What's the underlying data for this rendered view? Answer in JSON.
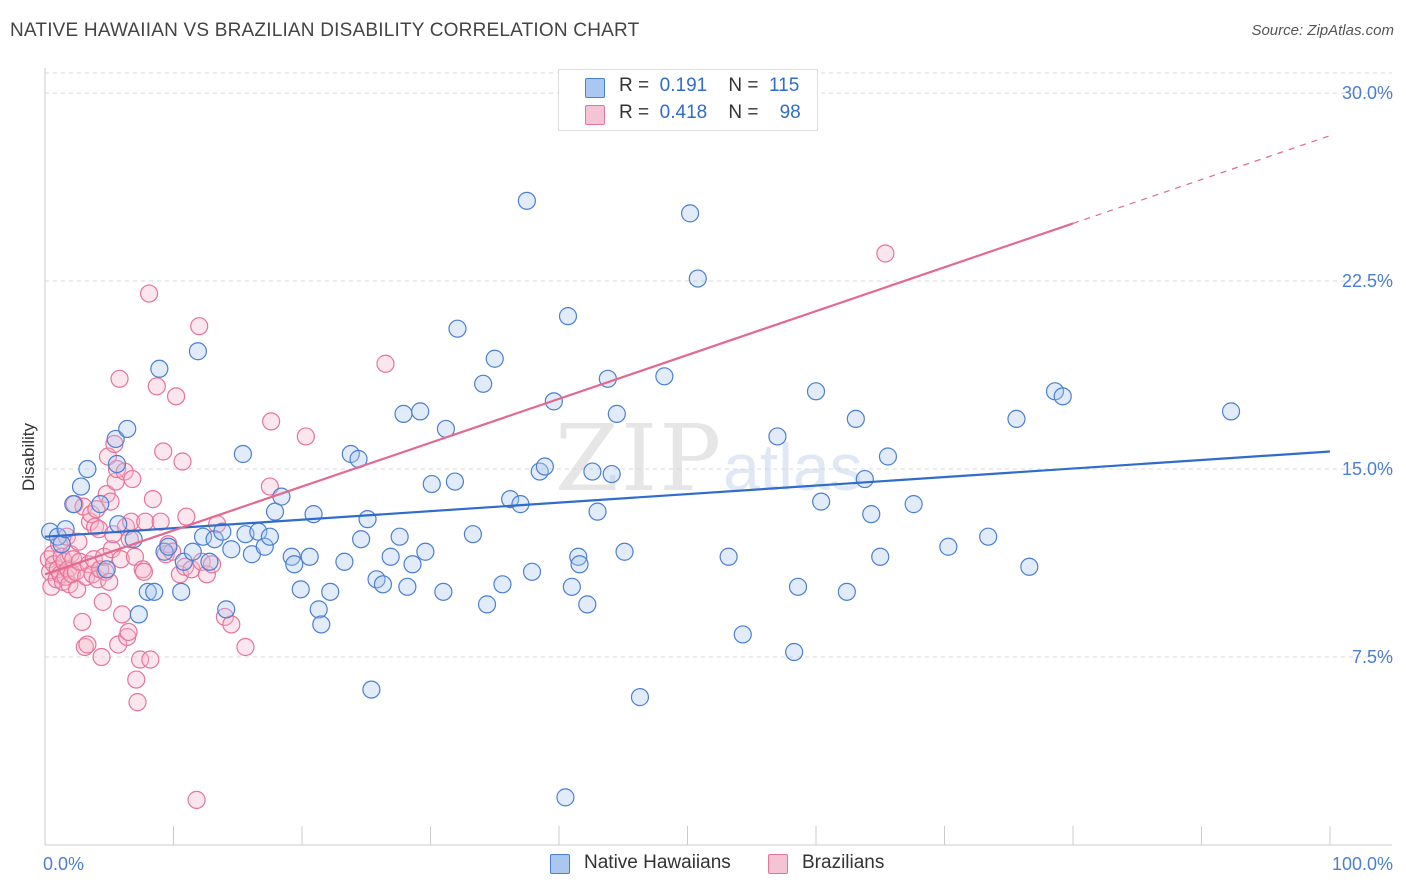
{
  "title": "NATIVE HAWAIIAN VS BRAZILIAN DISABILITY CORRELATION CHART",
  "source": "Source: ZipAtlas.com",
  "watermark": {
    "zip": "ZIP",
    "atlas": "atlas"
  },
  "legend": {
    "rows": [
      {
        "r_label": "R =",
        "r_value": "0.191",
        "n_label": "N =",
        "n_value": "115"
      },
      {
        "r_label": "R =",
        "r_value": "0.418",
        "n_label": "N =",
        "n_value": "98"
      }
    ]
  },
  "bottom_legend": {
    "series_a": "Native Hawaiians",
    "series_b": "Brazilians"
  },
  "axes": {
    "ylabel": "Disability",
    "x_ticks": [
      "0.0%",
      "100.0%"
    ],
    "y_ticks": [
      "7.5%",
      "15.0%",
      "22.5%",
      "30.0%"
    ]
  },
  "colors": {
    "blue_fill": "#aac7ef",
    "blue_stroke": "#4a7fd4",
    "blue_line": "#2f6ccc",
    "pink_fill": "#f5b7cb",
    "pink_stroke": "#e8739a",
    "pink_line": "#e2698f",
    "grid": "#d9d9d9",
    "axis_text": "#4a7fd4"
  },
  "chart_data": {
    "type": "scatter",
    "title": "NATIVE HAWAIIAN VS BRAZILIAN DISABILITY CORRELATION CHART",
    "xlabel": "",
    "ylabel": "Disability",
    "xlim": [
      0,
      100
    ],
    "ylim": [
      0,
      31
    ],
    "y_ticks": [
      7.5,
      15.0,
      22.5,
      30.0
    ],
    "grid": true,
    "legend_position": "top-center",
    "series": [
      {
        "name": "Native Hawaiians",
        "r": 0.191,
        "n": 115,
        "trend": {
          "x": [
            0,
            100
          ],
          "y": [
            12.3,
            15.7
          ]
        },
        "points": [
          [
            0.4,
            12.5
          ],
          [
            1.0,
            12.3
          ],
          [
            1.3,
            12.0
          ],
          [
            1.6,
            12.6
          ],
          [
            2.2,
            13.6
          ],
          [
            2.8,
            14.3
          ],
          [
            3.3,
            15.0
          ],
          [
            4.3,
            13.6
          ],
          [
            4.8,
            11.0
          ],
          [
            5.5,
            16.2
          ],
          [
            5.6,
            15.2
          ],
          [
            5.7,
            12.8
          ],
          [
            6.4,
            16.6
          ],
          [
            6.9,
            12.2
          ],
          [
            7.3,
            9.2
          ],
          [
            8.0,
            10.1
          ],
          [
            8.5,
            10.1
          ],
          [
            8.9,
            19.0
          ],
          [
            9.3,
            11.7
          ],
          [
            9.6,
            11.9
          ],
          [
            10.6,
            10.1
          ],
          [
            10.8,
            11.3
          ],
          [
            11.5,
            11.7
          ],
          [
            11.9,
            19.7
          ],
          [
            12.3,
            12.3
          ],
          [
            12.8,
            11.3
          ],
          [
            13.2,
            12.2
          ],
          [
            13.8,
            12.5
          ],
          [
            14.1,
            9.4
          ],
          [
            14.5,
            11.8
          ],
          [
            15.4,
            15.6
          ],
          [
            15.6,
            12.4
          ],
          [
            16.1,
            11.6
          ],
          [
            16.6,
            12.5
          ],
          [
            17.1,
            11.9
          ],
          [
            17.5,
            12.3
          ],
          [
            17.9,
            13.3
          ],
          [
            18.4,
            13.9
          ],
          [
            19.2,
            11.5
          ],
          [
            19.4,
            11.2
          ],
          [
            19.9,
            10.2
          ],
          [
            20.6,
            11.5
          ],
          [
            20.9,
            13.2
          ],
          [
            21.3,
            9.4
          ],
          [
            21.5,
            8.8
          ],
          [
            22.2,
            10.1
          ],
          [
            23.3,
            11.3
          ],
          [
            23.8,
            15.6
          ],
          [
            24.4,
            15.4
          ],
          [
            24.6,
            12.2
          ],
          [
            25.1,
            13.0
          ],
          [
            25.4,
            6.2
          ],
          [
            25.8,
            10.6
          ],
          [
            26.3,
            10.4
          ],
          [
            26.9,
            11.5
          ],
          [
            27.6,
            12.3
          ],
          [
            27.9,
            17.2
          ],
          [
            28.2,
            10.3
          ],
          [
            28.6,
            11.2
          ],
          [
            29.2,
            17.3
          ],
          [
            29.6,
            11.7
          ],
          [
            30.1,
            14.4
          ],
          [
            31.0,
            10.1
          ],
          [
            31.2,
            16.6
          ],
          [
            31.9,
            14.5
          ],
          [
            32.1,
            20.6
          ],
          [
            33.3,
            12.4
          ],
          [
            34.1,
            18.4
          ],
          [
            34.4,
            9.6
          ],
          [
            35.0,
            19.4
          ],
          [
            35.6,
            10.4
          ],
          [
            36.2,
            13.8
          ],
          [
            37.0,
            13.6
          ],
          [
            37.5,
            25.7
          ],
          [
            37.9,
            10.9
          ],
          [
            38.5,
            14.9
          ],
          [
            38.9,
            15.1
          ],
          [
            39.6,
            17.7
          ],
          [
            40.5,
            1.9
          ],
          [
            40.7,
            21.1
          ],
          [
            41.0,
            10.3
          ],
          [
            41.5,
            11.5
          ],
          [
            41.6,
            11.2
          ],
          [
            42.2,
            9.6
          ],
          [
            42.6,
            14.9
          ],
          [
            43.0,
            13.3
          ],
          [
            43.8,
            18.6
          ],
          [
            44.1,
            14.8
          ],
          [
            44.5,
            17.2
          ],
          [
            45.1,
            11.7
          ],
          [
            46.3,
            5.9
          ],
          [
            48.2,
            18.7
          ],
          [
            50.2,
            25.2
          ],
          [
            50.8,
            22.6
          ],
          [
            53.2,
            11.5
          ],
          [
            54.3,
            8.4
          ],
          [
            57.0,
            16.3
          ],
          [
            58.3,
            7.7
          ],
          [
            58.6,
            10.3
          ],
          [
            60.0,
            18.1
          ],
          [
            60.4,
            13.7
          ],
          [
            62.4,
            10.1
          ],
          [
            63.1,
            17.0
          ],
          [
            63.8,
            14.6
          ],
          [
            64.3,
            13.2
          ],
          [
            65.0,
            11.5
          ],
          [
            65.6,
            15.5
          ],
          [
            67.6,
            13.6
          ],
          [
            70.3,
            11.9
          ],
          [
            73.4,
            12.3
          ],
          [
            75.6,
            17.0
          ],
          [
            76.6,
            11.1
          ],
          [
            78.6,
            18.1
          ],
          [
            79.2,
            17.9
          ],
          [
            92.3,
            17.3
          ]
        ]
      },
      {
        "name": "Brazilians",
        "r": 0.418,
        "n": 98,
        "trend": {
          "x": [
            0,
            80
          ],
          "y": [
            10.8,
            24.8
          ]
        },
        "trend_dashed": {
          "x": [
            80,
            100
          ],
          "y": [
            24.8,
            28.3
          ]
        },
        "points": [
          [
            0.3,
            11.4
          ],
          [
            0.4,
            10.9
          ],
          [
            0.5,
            10.3
          ],
          [
            0.6,
            11.6
          ],
          [
            0.7,
            11.2
          ],
          [
            0.9,
            10.6
          ],
          [
            1.0,
            11.0
          ],
          [
            1.1,
            12.0
          ],
          [
            1.2,
            10.8
          ],
          [
            1.3,
            11.5
          ],
          [
            1.4,
            10.5
          ],
          [
            1.5,
            11.3
          ],
          [
            1.6,
            10.7
          ],
          [
            1.7,
            12.3
          ],
          [
            1.8,
            11.0
          ],
          [
            1.9,
            10.4
          ],
          [
            2.0,
            11.6
          ],
          [
            2.1,
            10.8
          ],
          [
            2.2,
            11.4
          ],
          [
            2.3,
            13.6
          ],
          [
            2.4,
            10.9
          ],
          [
            2.5,
            10.2
          ],
          [
            2.6,
            12.1
          ],
          [
            2.7,
            11.3
          ],
          [
            2.9,
            8.9
          ],
          [
            3.0,
            13.5
          ],
          [
            3.1,
            7.9
          ],
          [
            3.2,
            10.7
          ],
          [
            3.3,
            8.0
          ],
          [
            3.4,
            11.2
          ],
          [
            3.5,
            12.9
          ],
          [
            3.6,
            13.2
          ],
          [
            3.7,
            10.8
          ],
          [
            3.8,
            11.4
          ],
          [
            3.9,
            12.7
          ],
          [
            4.0,
            13.4
          ],
          [
            4.1,
            10.6
          ],
          [
            4.2,
            12.6
          ],
          [
            4.3,
            11.0
          ],
          [
            4.4,
            7.5
          ],
          [
            4.5,
            9.7
          ],
          [
            4.6,
            11.5
          ],
          [
            4.7,
            10.9
          ],
          [
            4.8,
            14.0
          ],
          [
            4.9,
            15.5
          ],
          [
            5.0,
            10.5
          ],
          [
            5.1,
            13.7
          ],
          [
            5.2,
            11.8
          ],
          [
            5.3,
            12.4
          ],
          [
            5.4,
            16.0
          ],
          [
            5.5,
            14.5
          ],
          [
            5.6,
            15.0
          ],
          [
            5.7,
            8.0
          ],
          [
            5.8,
            18.6
          ],
          [
            5.9,
            11.4
          ],
          [
            6.0,
            9.2
          ],
          [
            6.2,
            14.9
          ],
          [
            6.3,
            12.7
          ],
          [
            6.4,
            8.3
          ],
          [
            6.5,
            8.5
          ],
          [
            6.6,
            12.2
          ],
          [
            6.7,
            12.9
          ],
          [
            6.8,
            14.6
          ],
          [
            7.0,
            11.5
          ],
          [
            7.1,
            6.6
          ],
          [
            7.2,
            5.7
          ],
          [
            7.4,
            7.4
          ],
          [
            7.6,
            11.0
          ],
          [
            7.7,
            10.9
          ],
          [
            7.8,
            12.9
          ],
          [
            8.1,
            22.0
          ],
          [
            8.2,
            7.4
          ],
          [
            8.4,
            13.8
          ],
          [
            8.7,
            18.3
          ],
          [
            9.0,
            12.9
          ],
          [
            9.2,
            15.7
          ],
          [
            9.4,
            11.6
          ],
          [
            9.6,
            12.0
          ],
          [
            9.9,
            11.7
          ],
          [
            10.2,
            17.9
          ],
          [
            10.5,
            10.8
          ],
          [
            10.7,
            15.3
          ],
          [
            10.9,
            11.1
          ],
          [
            11.0,
            13.1
          ],
          [
            11.4,
            11.0
          ],
          [
            11.8,
            1.8
          ],
          [
            12.0,
            20.7
          ],
          [
            12.2,
            11.3
          ],
          [
            12.6,
            10.8
          ],
          [
            13.0,
            11.2
          ],
          [
            13.4,
            12.8
          ],
          [
            14.0,
            9.1
          ],
          [
            14.5,
            8.8
          ],
          [
            15.6,
            7.9
          ],
          [
            17.5,
            14.3
          ],
          [
            17.6,
            16.9
          ],
          [
            20.3,
            16.3
          ],
          [
            26.5,
            19.2
          ],
          [
            65.4,
            23.6
          ]
        ]
      }
    ]
  }
}
